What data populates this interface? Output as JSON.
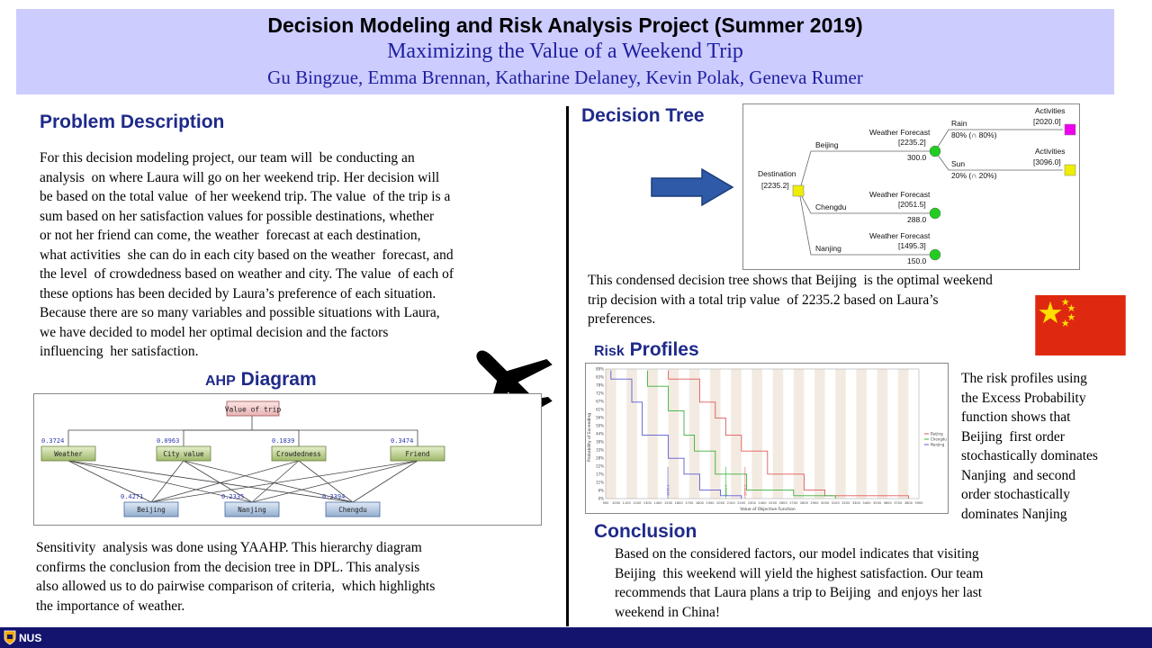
{
  "header": {
    "title": "Decision Modeling and Risk Analysis Project (Summer 2019)",
    "subtitle": "Maximizing the Value of a Weekend Trip",
    "authors": "Gu Bingzue, Emma Brennan, Katharine Delaney, Kevin Polak, Geneva Rumer"
  },
  "problem": {
    "title": "Problem Description",
    "lines": [
      "For this decision modeling project, our team will  be conducting an",
      "analysis  on where Laura will go on her weekend trip. Her decision will",
      "be based on the total value  of her weekend trip. The value  of the trip is a",
      "sum based on her satisfaction values for possible destinations, whether",
      "or not her friend can come, the weather  forecast at each destination,",
      "what activities  she can do in each city based on the weather  forecast, and",
      "the level  of crowdedness based on weather and city. The value  of each of",
      "these options has been decided by Laura’s preference of each situation.",
      "Because there are so many variables and possible situations with Laura,",
      "we have decided to model her optimal decision and the factors",
      "influencing  her satisfaction."
    ]
  },
  "ahp": {
    "title_prefix": "AHP",
    "title_main": "Diagram",
    "goal": "Value of trip",
    "criteria": [
      {
        "name": "Weather",
        "weight": "0.3724"
      },
      {
        "name": "City value",
        "weight": "0.0963"
      },
      {
        "name": "Crowdedness",
        "weight": "0.1839"
      },
      {
        "name": "Friend",
        "weight": "0.3474"
      }
    ],
    "alternatives": [
      {
        "name": "Beijing",
        "weight": "0.4271"
      },
      {
        "name": "Nanjing",
        "weight": "0.2335"
      },
      {
        "name": "Chengdu",
        "weight": "0.3394"
      }
    ]
  },
  "sensitivity": {
    "lines": [
      "Sensitivity  analysis was done using YAAHP. This hierarchy diagram",
      "confirms the conclusion from the decision tree in DPL. This analysis",
      "also allowed us to do pairwise comparison of criteria,  which highlights",
      "the importance of weather."
    ]
  },
  "decision_tree": {
    "title": "Decision Tree",
    "root_label": "Destination",
    "root_value": "[2235.2]",
    "branches": [
      {
        "city": "Beijing",
        "node_label": "Weather Forecast",
        "node_value": "[2235.2]",
        "payoff": "300.0"
      },
      {
        "city": "Chengdu",
        "node_label": "Weather Forecast",
        "node_value": "[2051.5]",
        "payoff": "288.0"
      },
      {
        "city": "Nanjing",
        "node_label": "Weather Forecast",
        "node_value": "[1495.3]",
        "payoff": "150.0"
      }
    ],
    "outcomes": [
      {
        "name": "Rain",
        "prob": "80% (∩ 80%)",
        "leaf_label": "Activities",
        "leaf_value": "[2020.0]",
        "color": "#ee00ee"
      },
      {
        "name": "Sun",
        "prob": "20% (∩ 20%)",
        "leaf_label": "Activities",
        "leaf_value": "[3096.0]",
        "color": "#eeee00"
      }
    ],
    "caption_lines": [
      "This condensed decision tree shows that Beijing  is the optimal weekend",
      "trip decision with a total trip value  of 2235.2 based on Laura’s",
      "preferences."
    ]
  },
  "risk": {
    "title_prefix": "Risk",
    "title_main": "Profiles",
    "side_lines": [
      "The risk profiles using",
      "the Excess Probability",
      "function shows that",
      "Beijing  first order",
      "stochastically dominates",
      "Nanjing  and second",
      "order stochastically",
      "dominates Nanjing"
    ]
  },
  "chart_data": {
    "type": "line",
    "xlabel": "Value of Objective Function",
    "ylabel": "Probability of Exceeding",
    "xlim": [
      900,
      3900
    ],
    "ylim": [
      0,
      90
    ],
    "x_ticks": [
      900,
      1000,
      1100,
      1200,
      1300,
      1400,
      1500,
      1600,
      1700,
      1800,
      1900,
      2000,
      2100,
      2200,
      2300,
      2400,
      2500,
      2600,
      2700,
      2800,
      2900,
      3000,
      3100,
      3200,
      3300,
      3400,
      3500,
      3600,
      3700,
      3800,
      3900
    ],
    "y_ticks": [
      "0%",
      "6%",
      "11%",
      "17%",
      "22%",
      "28%",
      "33%",
      "39%",
      "44%",
      "50%",
      "56%",
      "61%",
      "67%",
      "72%",
      "78%",
      "83%",
      "89%"
    ],
    "legend": [
      "Beijing",
      "Chengdu",
      "Nanjing"
    ],
    "legend_position": "right",
    "series": [
      {
        "name": "Beijing",
        "color": "#e05a5a",
        "mean": "2235.2",
        "points": [
          [
            1500,
            89
          ],
          [
            1500,
            83
          ],
          [
            1800,
            83
          ],
          [
            1800,
            67
          ],
          [
            1950,
            67
          ],
          [
            1950,
            56
          ],
          [
            2050,
            56
          ],
          [
            2050,
            44
          ],
          [
            2200,
            44
          ],
          [
            2200,
            33
          ],
          [
            2450,
            33
          ],
          [
            2450,
            17
          ],
          [
            2800,
            17
          ],
          [
            2800,
            6
          ],
          [
            3000,
            6
          ],
          [
            3000,
            2
          ],
          [
            3800,
            2
          ],
          [
            3800,
            0
          ]
        ]
      },
      {
        "name": "Chengdu",
        "color": "#3ab03a",
        "mean": "2051.5",
        "points": [
          [
            1300,
            89
          ],
          [
            1300,
            78
          ],
          [
            1500,
            78
          ],
          [
            1500,
            61
          ],
          [
            1650,
            61
          ],
          [
            1650,
            44
          ],
          [
            1750,
            44
          ],
          [
            1750,
            33
          ],
          [
            1950,
            33
          ],
          [
            1950,
            17
          ],
          [
            2250,
            17
          ],
          [
            2250,
            6
          ],
          [
            2700,
            6
          ],
          [
            2700,
            2
          ],
          [
            3100,
            2
          ],
          [
            3100,
            0
          ]
        ]
      },
      {
        "name": "Nanjing",
        "color": "#5a5ad0",
        "mean": "1495.3",
        "points": [
          [
            950,
            89
          ],
          [
            950,
            83
          ],
          [
            1150,
            83
          ],
          [
            1150,
            67
          ],
          [
            1250,
            67
          ],
          [
            1250,
            44
          ],
          [
            1500,
            44
          ],
          [
            1500,
            28
          ],
          [
            1650,
            28
          ],
          [
            1650,
            17
          ],
          [
            1800,
            17
          ],
          [
            1800,
            6
          ],
          [
            2000,
            6
          ],
          [
            2000,
            2
          ],
          [
            2200,
            2
          ],
          [
            2200,
            0
          ]
        ]
      }
    ]
  },
  "conclusion": {
    "title": "Conclusion",
    "lines": [
      "Based on the considered factors, our model indicates that visiting",
      "Beijing  this weekend will yield the highest satisfaction. Our team",
      "recommends that Laura plans a trip to Beijing  and enjoys her last",
      "weekend in China!"
    ]
  },
  "footer": {
    "logo_text": "NUS",
    "bg_color": "#14146e"
  }
}
